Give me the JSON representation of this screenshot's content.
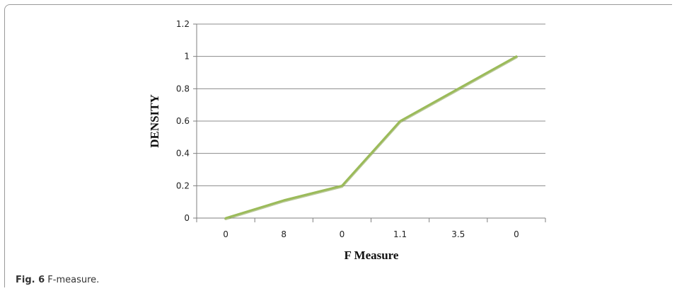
{
  "caption": {
    "label": "Fig. 6",
    "text": "F-measure."
  },
  "chart_data": {
    "type": "line",
    "categories": [
      "0",
      "8",
      "0",
      "1.1",
      "3.5",
      "0"
    ],
    "series": [
      {
        "values": [
          0,
          0.11,
          0.2,
          0.6,
          0.8,
          1.0
        ],
        "color": "#9bbb59"
      }
    ],
    "xlabel": "F Measure",
    "ylabel": "DENSITY",
    "ylim": [
      0,
      1.2
    ],
    "yticks": [
      "0",
      "0.2",
      "0.4",
      "0.6",
      "0.8",
      "1",
      "1.2"
    ],
    "grid": true,
    "colors": {
      "grid": "#8c8c8c",
      "axis": "#7f7f7f",
      "line": "#9bbb59",
      "line_shadow": "#7f9a45"
    }
  }
}
